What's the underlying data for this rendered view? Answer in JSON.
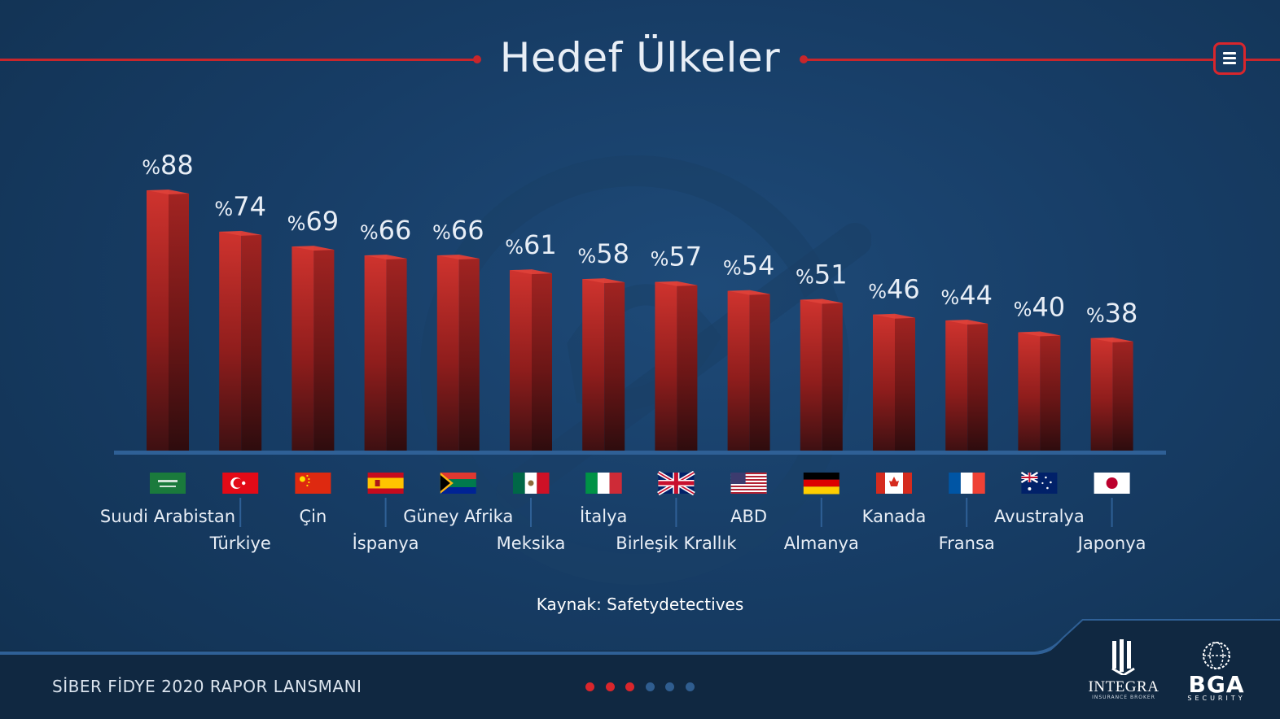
{
  "slide": {
    "title": "Hedef Ülkeler",
    "source": "Kaynak: Safetydetectives",
    "footer_title": "SİBER FİDYE 2020 RAPOR LANSMANI",
    "menu_icon": "hamburger-menu-icon",
    "pagination": {
      "total": 6,
      "active": [
        1,
        2,
        3
      ]
    }
  },
  "logos": {
    "integra": {
      "name": "INTEGRA",
      "sub": "INSURANCE BROKER"
    },
    "bga": {
      "name": "BGA",
      "sub": "SECURITY"
    }
  },
  "colors": {
    "accent": "#c8262b",
    "bar_top": "#c9302c",
    "bar_bottom": "#4a1212",
    "dot_active": "#d9262c",
    "dot_inactive": "#2f5d8f",
    "background": "#173d66"
  },
  "chart_data": {
    "type": "bar",
    "value_prefix": "%",
    "categories": [
      "Suudi Arabistan",
      "Türkiye",
      "Çin",
      "İspanya",
      "Güney Afrika",
      "Meksika",
      "İtalya",
      "Birleşik Krallık",
      "ABD",
      "Almanya",
      "Kanada",
      "Fransa",
      "Avustralya",
      "Japonya"
    ],
    "flags": [
      "sa",
      "tr",
      "cn",
      "es",
      "za",
      "mx",
      "it",
      "gb",
      "us",
      "de",
      "ca",
      "fr",
      "au",
      "jp"
    ],
    "values": [
      88,
      74,
      69,
      66,
      66,
      61,
      58,
      57,
      54,
      51,
      46,
      44,
      40,
      38
    ],
    "ylim": [
      0,
      100
    ],
    "grid": false,
    "legend": "none"
  }
}
